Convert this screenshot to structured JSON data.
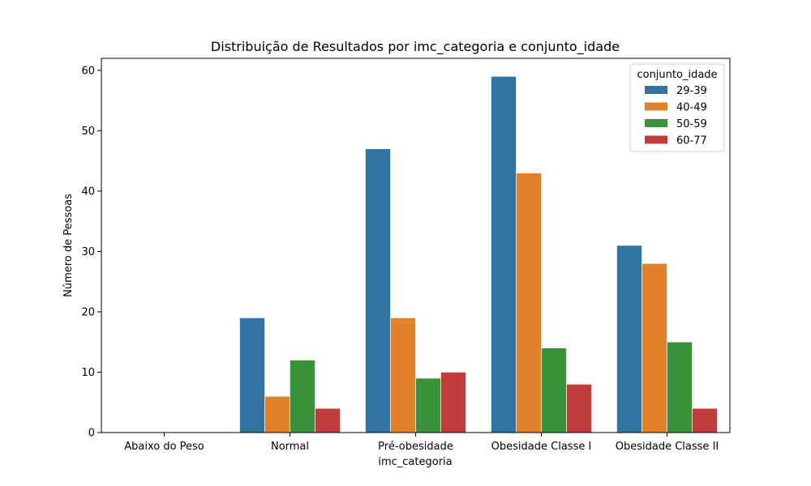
{
  "chart_data": {
    "type": "bar",
    "title": "Distribuição de Resultados por imc_categoria e conjunto_idade",
    "xlabel": "imc_categoria",
    "ylabel": "Número de Pessoas",
    "categories": [
      "Abaixo do Peso",
      "Normal",
      "Pré-obesidade",
      "Obesidade Classe I",
      "Obesidade Classe II"
    ],
    "series": [
      {
        "name": "29-39",
        "color": "#3274a1",
        "values": [
          0,
          19,
          47,
          59,
          31
        ]
      },
      {
        "name": "40-49",
        "color": "#e1812c",
        "values": [
          0,
          6,
          19,
          43,
          28
        ]
      },
      {
        "name": "50-59",
        "color": "#3a923a",
        "values": [
          0,
          12,
          9,
          14,
          15
        ]
      },
      {
        "name": "60-77",
        "color": "#c03d3e",
        "values": [
          0,
          4,
          10,
          8,
          4
        ]
      }
    ],
    "ylim": [
      0,
      62
    ],
    "yticks": [
      0,
      10,
      20,
      30,
      40,
      50,
      60
    ],
    "legend": {
      "title": "conjunto_idade",
      "placement": "top-right"
    },
    "grid": false
  }
}
